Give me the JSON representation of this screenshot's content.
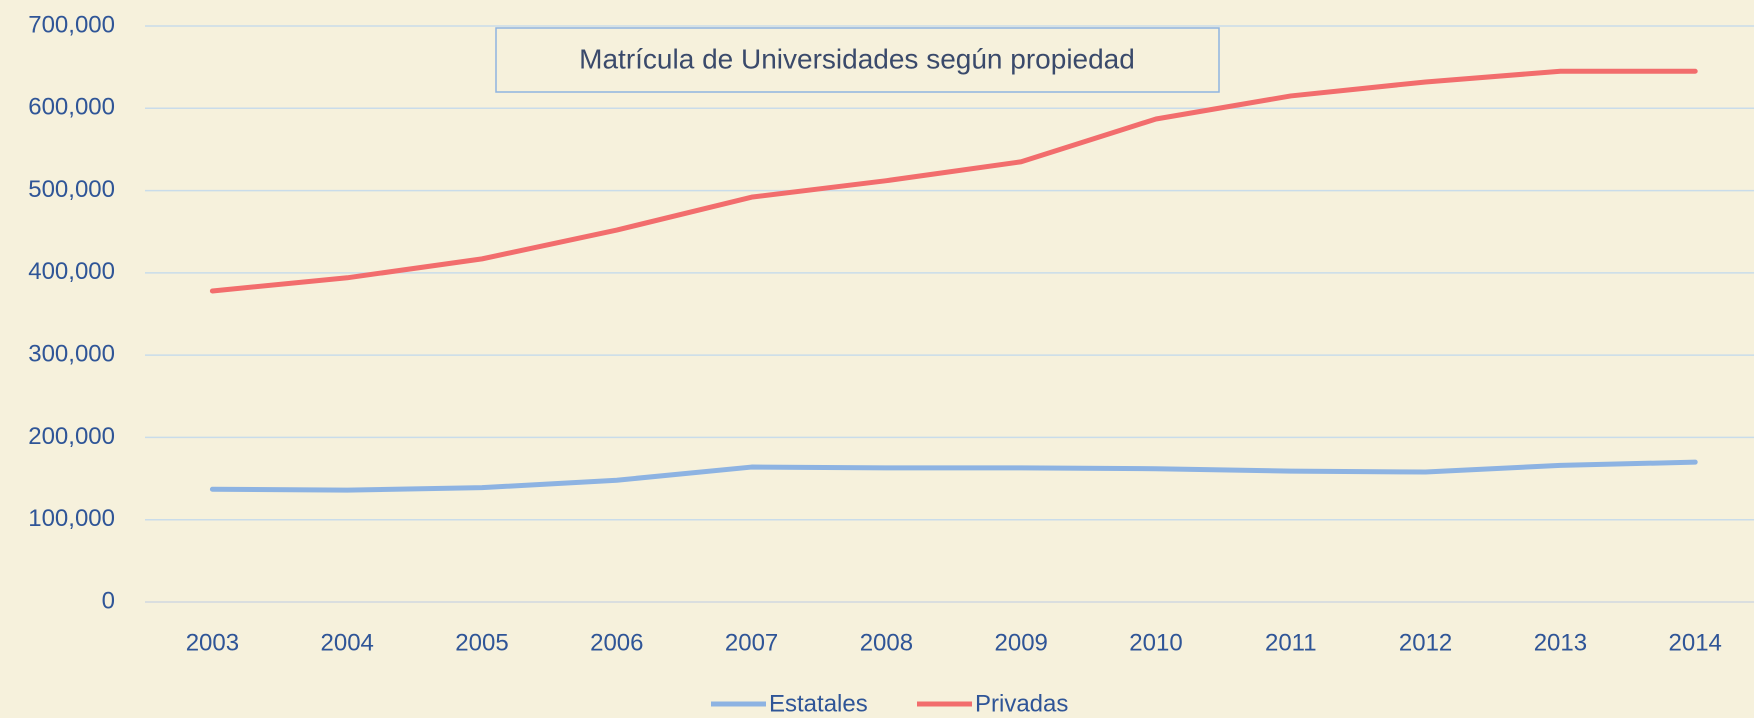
{
  "chart_data": {
    "type": "line",
    "title": "Matrícula de Universidades según propiedad",
    "categories": [
      "2003",
      "2004",
      "2005",
      "2006",
      "2007",
      "2008",
      "2009",
      "2010",
      "2011",
      "2012",
      "2013",
      "2014"
    ],
    "series": [
      {
        "name": "Estatales",
        "color": "#8db3e2",
        "values": [
          137000,
          136000,
          139000,
          148000,
          164000,
          163000,
          163000,
          162000,
          159000,
          158000,
          166000,
          170000
        ]
      },
      {
        "name": "Privadas",
        "color": "#f26d6d",
        "values": [
          378000,
          394000,
          417000,
          452000,
          492000,
          512000,
          535000,
          587000,
          615000,
          632000,
          645000,
          645000
        ]
      }
    ],
    "ylim": [
      0,
      700000
    ],
    "yticks": [
      0,
      {
        "value": 100000,
        "label": "100,000"
      },
      {
        "value": 200000,
        "label": "200,000"
      },
      {
        "value": 300000,
        "label": "300,000"
      },
      {
        "value": 400000,
        "label": "400,000"
      },
      {
        "value": 500000,
        "label": "500,000"
      },
      {
        "value": 600000,
        "label": "600,000"
      },
      {
        "value": 700000,
        "label": "700,000"
      }
    ],
    "grid": true,
    "legend": "bottom"
  }
}
